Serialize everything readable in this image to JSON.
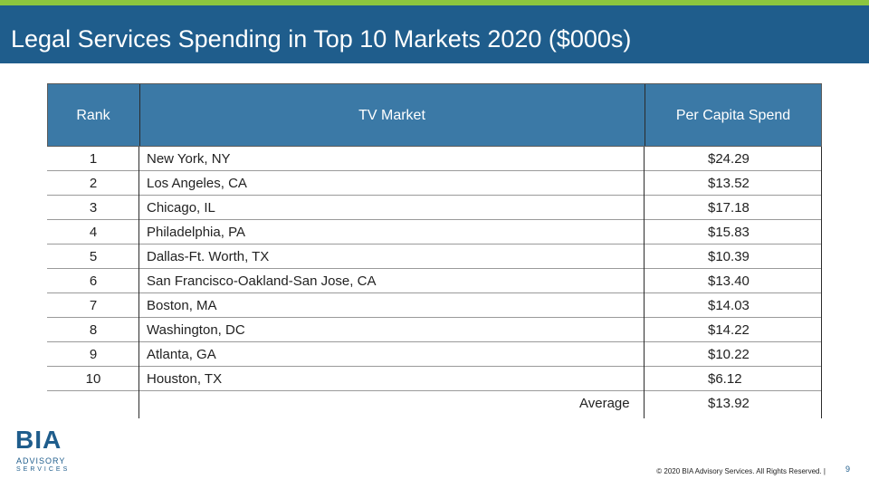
{
  "title": "Legal Services Spending in Top 10 Markets 2020 ($000s)",
  "table": {
    "headers": {
      "rank": "Rank",
      "market": "TV Market",
      "spend": "Per Capita Spend"
    },
    "rows": [
      {
        "rank": "1",
        "market": "New York, NY",
        "spend": "$24.29"
      },
      {
        "rank": "2",
        "market": "Los Angeles, CA",
        "spend": "$13.52"
      },
      {
        "rank": "3",
        "market": "Chicago, IL",
        "spend": "$17.18"
      },
      {
        "rank": "4",
        "market": "Philadelphia, PA",
        "spend": "$15.83"
      },
      {
        "rank": "5",
        "market": "Dallas-Ft. Worth, TX",
        "spend": "$10.39"
      },
      {
        "rank": "6",
        "market": "San Francisco-Oakland-San Jose, CA",
        "spend": "$13.40"
      },
      {
        "rank": "7",
        "market": "Boston, MA",
        "spend": "$14.03"
      },
      {
        "rank": "8",
        "market": "Washington, DC",
        "spend": "$14.22"
      },
      {
        "rank": "9",
        "market": "Atlanta, GA",
        "spend": "$10.22"
      },
      {
        "rank": "10",
        "market": "Houston, TX",
        "spend": "$6.12"
      }
    ],
    "average_label": "Average",
    "average_value": "$13.92"
  },
  "logo": {
    "wordmark": "BIA",
    "line1": "ADVISORY",
    "line2": "SERVICES"
  },
  "footer": {
    "copyright": "© 2020 BIA Advisory Services. All Rights Reserved. |",
    "page": "9"
  },
  "colors": {
    "accent_green": "#8cc63f",
    "title_blue": "#1f5d8c",
    "header_blue": "#3b79a6"
  }
}
